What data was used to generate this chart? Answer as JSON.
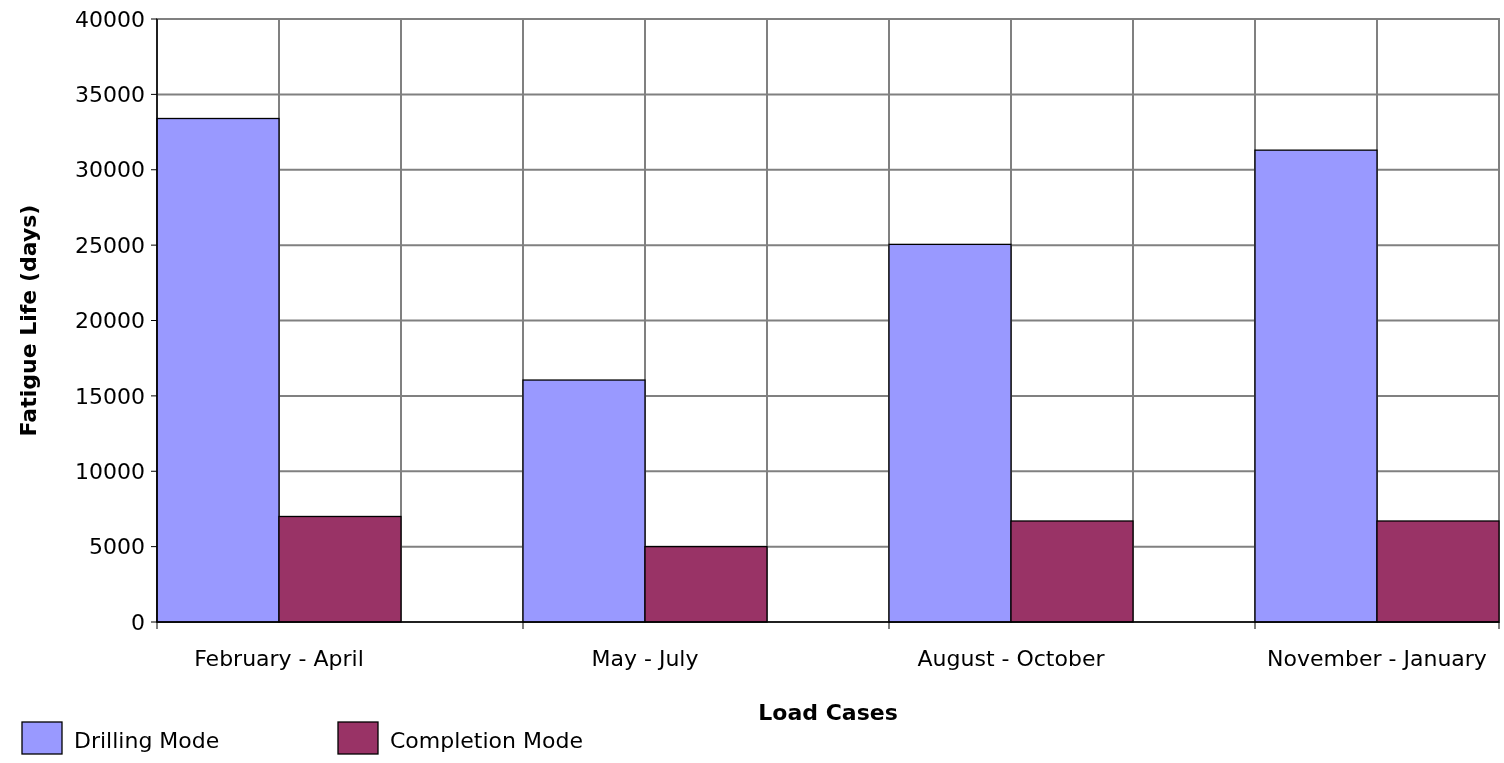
{
  "chart_data": {
    "type": "bar",
    "xlabel": "Load Cases",
    "ylabel": "Fatigue Life (days)",
    "categories": [
      "February - April",
      "May - July",
      "August - October",
      "November - January"
    ],
    "series": [
      {
        "name": "Drilling Mode",
        "color": "#9999ff",
        "values": [
          33400,
          16050,
          25050,
          31300
        ]
      },
      {
        "name": "Completion Mode",
        "color": "#993366",
        "values": [
          7000,
          5000,
          6700,
          6700
        ]
      }
    ],
    "ylim": [
      0,
      40000
    ],
    "yticks": [
      0,
      5000,
      10000,
      15000,
      20000,
      25000,
      30000,
      35000,
      40000
    ],
    "grid": true,
    "legend": "bottom left"
  }
}
